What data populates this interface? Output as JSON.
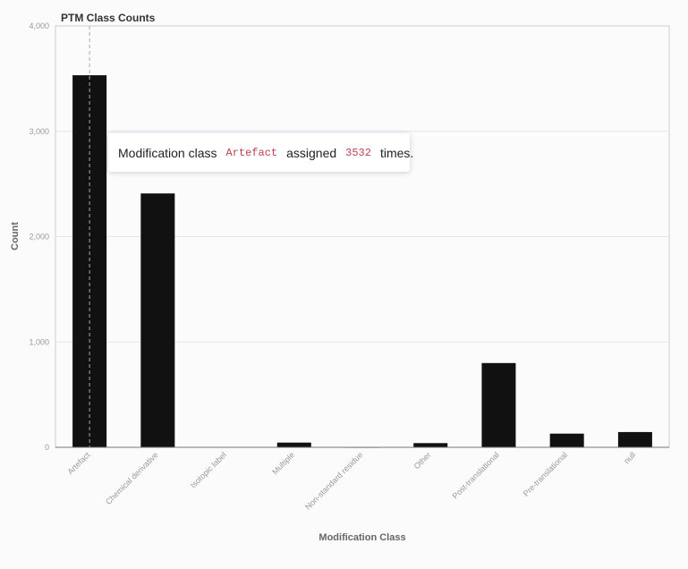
{
  "chart_data": {
    "type": "bar",
    "title": "PTM Class Counts",
    "xlabel": "Modification Class",
    "ylabel": "Count",
    "categories": [
      "Artefact",
      "Chemical derivative",
      "Isotopic label",
      "Multiple",
      "Non-standard residue",
      "Other",
      "Post-translational",
      "Pre-translational",
      "null"
    ],
    "values": [
      3532,
      2410,
      3,
      45,
      2,
      40,
      800,
      130,
      145
    ],
    "ylim": [
      0,
      4000
    ],
    "yticks": [
      0,
      1000,
      2000,
      3000,
      4000
    ],
    "ytick_labels": [
      "0",
      "1,000",
      "2,000",
      "3,000",
      "4,000"
    ],
    "grid": true,
    "bar_color": "#111111",
    "grid_color": "#e3e6ef"
  },
  "tooltip": {
    "prefix": "Modification class",
    "category": "Artefact",
    "middle": "assigned",
    "value": "3532",
    "suffix": "times."
  },
  "hover": {
    "category": "Artefact"
  }
}
